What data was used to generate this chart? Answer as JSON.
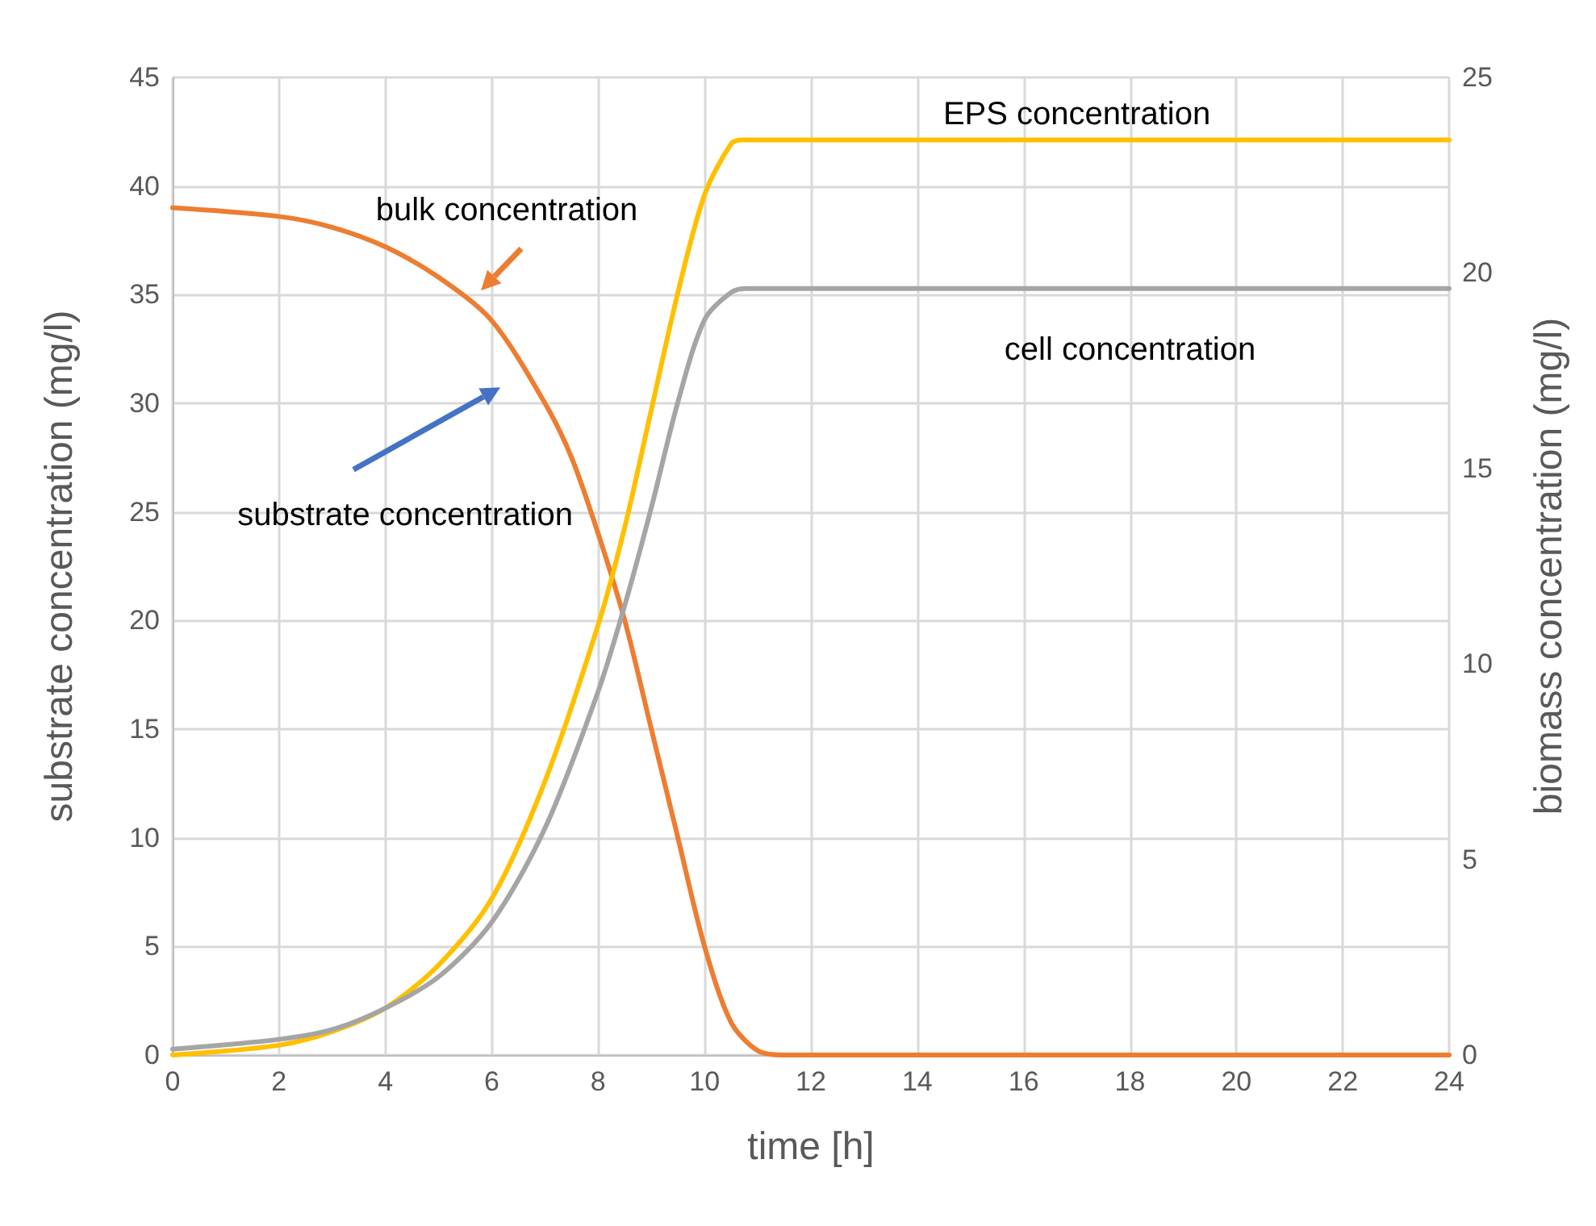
{
  "chart_data": {
    "type": "line",
    "xlabel": "time [h]",
    "ylabel": "substrate concentration (mg/l)",
    "y2label": "biomass concentration (mg/l)",
    "xlim": [
      0,
      24
    ],
    "xticks": [
      0,
      2,
      4,
      6,
      8,
      10,
      12,
      14,
      16,
      18,
      20,
      22,
      24
    ],
    "ylim": [
      0,
      45
    ],
    "yticks": [
      0,
      5,
      10,
      15,
      20,
      25,
      30,
      35,
      40,
      45
    ],
    "y2lim": [
      0,
      25
    ],
    "y2ticks": [
      0,
      5,
      10,
      15,
      20,
      25
    ],
    "grid": true,
    "legend": false,
    "marker": "none",
    "line_style": "solid",
    "annotations": [
      "bulk concentration",
      "substrate concentration"
    ],
    "series": [
      {
        "color": "#ed7d31",
        "x": [
          0,
          2,
          3,
          4,
          5,
          6,
          7,
          7.5,
          8,
          8.5,
          9,
          9.5,
          10,
          10.5,
          11,
          11.5,
          24
        ],
        "values": [
          39,
          38.6,
          38.1,
          37.2,
          35.8,
          33.8,
          30,
          27.5,
          24,
          20,
          15,
          10,
          5,
          1.5,
          0.2,
          0,
          0
        ]
      },
      {
        "name": "EPS concentration",
        "color": "#ffc000",
        "axis": "y2",
        "x": [
          0,
          2,
          3,
          4,
          5,
          6,
          7,
          8,
          8.5,
          9,
          9.5,
          10,
          10.5,
          10.7,
          17,
          24
        ],
        "values": [
          0,
          0.25,
          0.6,
          1.2,
          2.3,
          4,
          7,
          11,
          13.5,
          16.5,
          19.5,
          22,
          23.3,
          23.4,
          23.4,
          23.4
        ]
      },
      {
        "name": "cell concentration",
        "color": "#a5a5a5",
        "axis": "y2",
        "x": [
          0,
          2,
          3,
          4,
          5,
          6,
          7,
          8,
          8.5,
          9,
          9.5,
          10,
          10.5,
          10.8,
          18,
          24
        ],
        "values": [
          0.15,
          0.4,
          0.65,
          1.2,
          2,
          3.4,
          5.8,
          9.3,
          11.5,
          14,
          16.7,
          18.8,
          19.5,
          19.6,
          19.6,
          19.6
        ]
      }
    ]
  }
}
